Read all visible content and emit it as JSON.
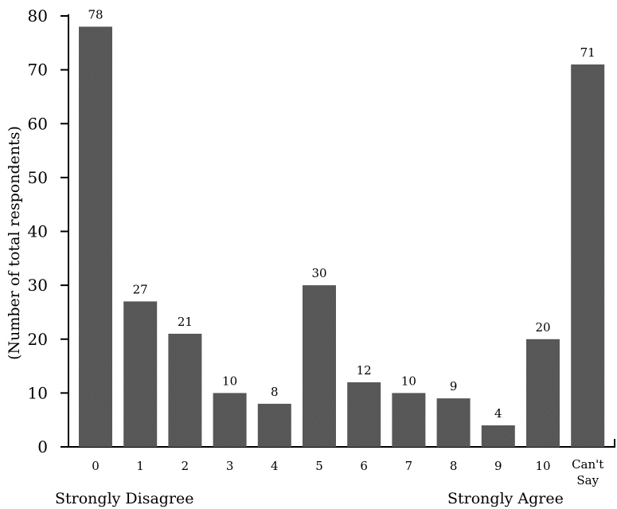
{
  "chart_data": {
    "type": "bar",
    "categories": [
      "0",
      "1",
      "2",
      "3",
      "4",
      "5",
      "6",
      "7",
      "8",
      "9",
      "10",
      "Can't Say"
    ],
    "values": [
      78,
      27,
      21,
      10,
      8,
      30,
      12,
      10,
      9,
      4,
      20,
      71
    ],
    "ylabel": "(Number of total respondents)",
    "xlabel": "",
    "ylim": [
      0,
      80
    ],
    "yticks": [
      0,
      10,
      20,
      30,
      40,
      50,
      60,
      70,
      80
    ],
    "grid": false,
    "bar_color": "#5e5e5e",
    "scale_anchors": {
      "left": "Strongly Disagree",
      "right": "Strongly Agree"
    }
  }
}
